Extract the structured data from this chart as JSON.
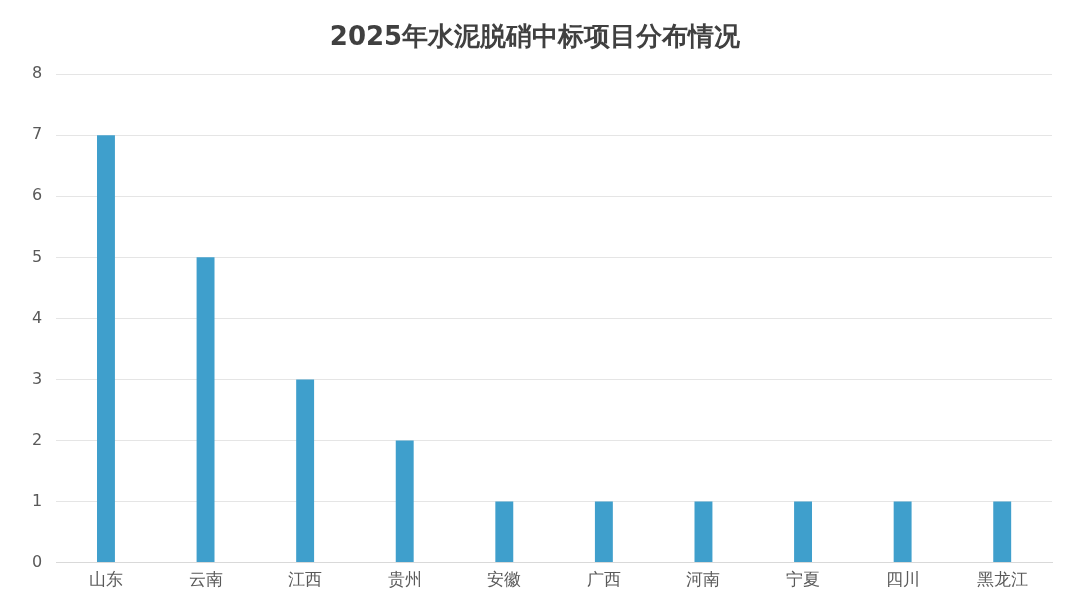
{
  "chart_data": {
    "type": "bar",
    "title": "2025年水泥脱硝中标项目分布情况",
    "categories": [
      "山东",
      "云南",
      "江西",
      "贵州",
      "安徽",
      "广西",
      "河南",
      "宁夏",
      "四川",
      "黑龙江"
    ],
    "values": [
      7,
      5,
      3,
      2,
      1,
      1,
      1,
      1,
      1,
      1
    ],
    "color": "#3f9fcc",
    "ylim": [
      0,
      8
    ],
    "yticks": [
      0,
      1,
      2,
      3,
      4,
      5,
      6,
      7,
      8
    ],
    "grid": "y"
  }
}
